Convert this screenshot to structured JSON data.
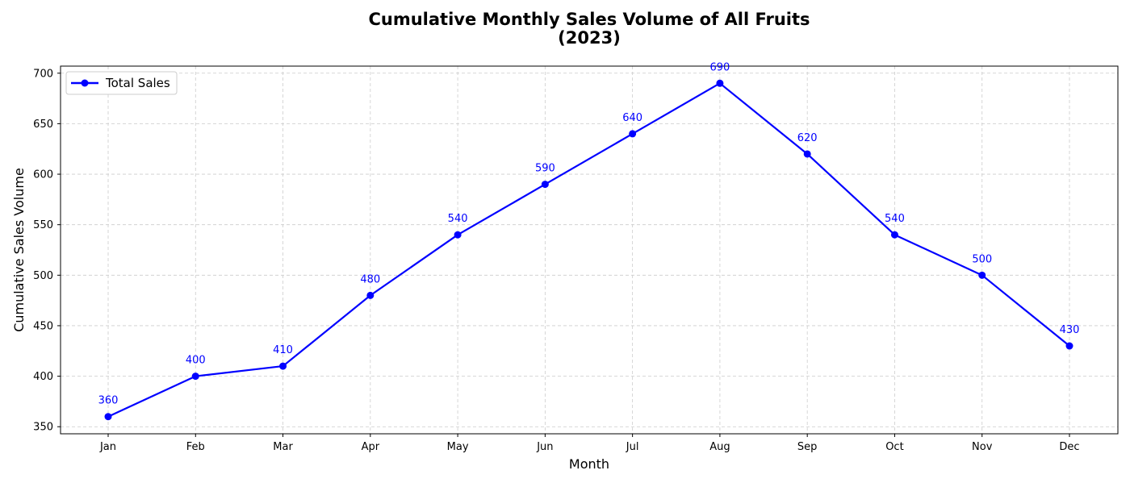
{
  "chart_data": {
    "type": "line",
    "title_line1": "Cumulative Monthly Sales Volume of All Fruits",
    "title_line2": "(2023)",
    "xlabel": "Month",
    "ylabel": "Cumulative Sales Volume",
    "categories": [
      "Jan",
      "Feb",
      "Mar",
      "Apr",
      "May",
      "Jun",
      "Jul",
      "Aug",
      "Sep",
      "Oct",
      "Nov",
      "Dec"
    ],
    "series": [
      {
        "name": "Total Sales",
        "values": [
          360,
          400,
          410,
          480,
          540,
          590,
          640,
          690,
          620,
          540,
          500,
          430
        ],
        "color": "#0000ff",
        "marker": "circle"
      }
    ],
    "ylim": [
      343,
      707
    ],
    "yticks": [
      350,
      400,
      450,
      500,
      550,
      600,
      650,
      700
    ],
    "grid": true,
    "grid_style": "dashed",
    "legend_position": "upper-left",
    "data_labels": true
  }
}
